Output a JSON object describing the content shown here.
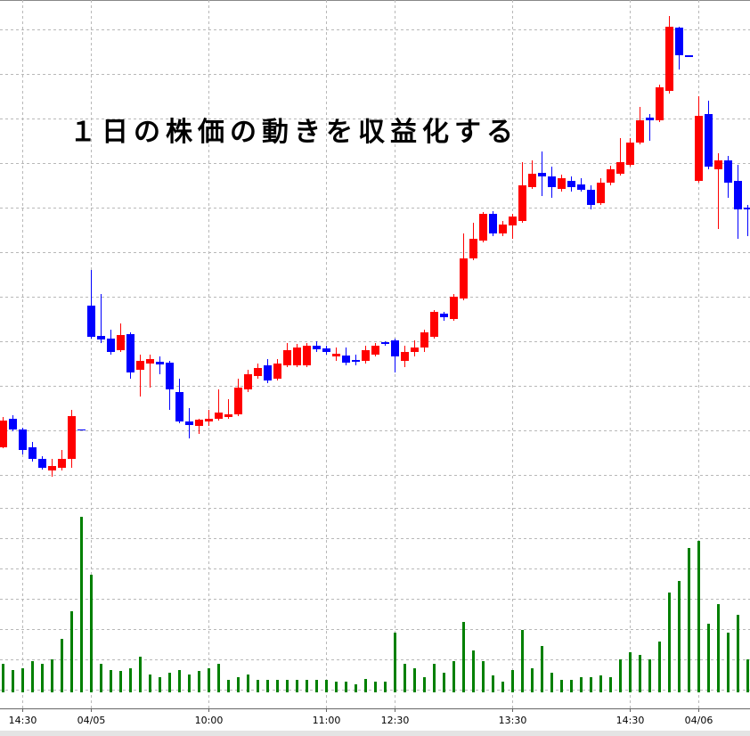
{
  "chart_data": {
    "type": "candlestick",
    "title": "１日の株価の動きを収益化する",
    "categories": [
      null,
      null,
      "14:30",
      null,
      null,
      null,
      null,
      null,
      null,
      "04/05",
      null,
      null,
      null,
      null,
      null,
      null,
      null,
      null,
      null,
      null,
      null,
      "10:00",
      null,
      null,
      null,
      null,
      null,
      null,
      null,
      null,
      null,
      null,
      null,
      "11:00",
      null,
      null,
      null,
      null,
      null,
      null,
      "12:30",
      null,
      null,
      null,
      null,
      null,
      null,
      null,
      null,
      null,
      null,
      null,
      "13:30",
      null,
      null,
      null,
      null,
      null,
      null,
      null,
      null,
      null,
      null,
      null,
      "14:30",
      null,
      null,
      null,
      null,
      null,
      null,
      "04/06",
      null,
      null,
      null,
      null,
      null
    ],
    "open": [
      98,
      130,
      118,
      98,
      85,
      72,
      75,
      85,
      118,
      257,
      223,
      220,
      207,
      225,
      185,
      192,
      194,
      193,
      160,
      127,
      122,
      127,
      130,
      132,
      135,
      163,
      178,
      190,
      175,
      190,
      190,
      190,
      212,
      209,
      200,
      201,
      196,
      195,
      202,
      216,
      218,
      195,
      205,
      210,
      222,
      248,
      242,
      265,
      310,
      330,
      360,
      338,
      347,
      352,
      390,
      406,
      402,
      388,
      397,
      393,
      387,
      372,
      395,
      405,
      415,
      440,
      468,
      465,
      498,
      569,
      538,
      397,
      472,
      410,
      420,
      397,
      367
    ],
    "high": [
      132,
      134,
      120,
      104,
      88,
      85,
      95,
      140,
      118,
      297,
      270,
      230,
      237,
      227,
      202,
      202,
      200,
      195,
      175,
      142,
      130,
      140,
      163,
      152,
      175,
      185,
      192,
      197,
      197,
      215,
      214,
      215,
      217,
      212,
      210,
      210,
      202,
      212,
      215,
      217,
      220,
      212,
      218,
      230,
      252,
      250,
      270,
      338,
      350,
      362,
      363,
      352,
      360,
      418,
      420,
      430,
      413,
      404,
      402,
      400,
      392,
      400,
      414,
      445,
      445,
      480,
      472,
      505,
      582,
      570,
      538,
      492,
      487,
      428,
      425,
      415,
      370
    ],
    "low": [
      97,
      116,
      90,
      82,
      73,
      65,
      72,
      75,
      118,
      220,
      215,
      202,
      205,
      175,
      155,
      165,
      180,
      140,
      125,
      108,
      113,
      122,
      128,
      130,
      133,
      160,
      175,
      170,
      173,
      188,
      188,
      188,
      205,
      202,
      195,
      190,
      190,
      192,
      200,
      212,
      182,
      188,
      200,
      205,
      220,
      240,
      240,
      263,
      308,
      328,
      335,
      335,
      332,
      350,
      388,
      380,
      378,
      385,
      385,
      385,
      365,
      370,
      392,
      403,
      413,
      438,
      442,
      463,
      495,
      522,
      536,
      395,
      410,
      343,
      378,
      332,
      335
    ],
    "close": [
      128,
      118,
      95,
      85,
      75,
      77,
      85,
      133,
      118,
      222,
      219,
      205,
      224,
      182,
      195,
      197,
      191,
      163,
      127,
      123,
      129,
      130,
      137,
      135,
      165,
      180,
      187,
      173,
      192,
      207,
      210,
      212,
      208,
      205,
      203,
      193,
      194,
      207,
      212,
      214,
      200,
      205,
      210,
      227,
      250,
      244,
      267,
      310,
      332,
      360,
      338,
      348,
      357,
      392,
      405,
      402,
      390,
      400,
      390,
      387,
      370,
      395,
      410,
      418,
      440,
      465,
      465,
      502,
      570,
      538,
      536,
      470,
      413,
      420,
      395,
      365,
      365
    ],
    "up_color": "#ff0000",
    "down_color": "#0000ff",
    "ylim": [
      40,
      600
    ],
    "ygrid": [
      67,
      117,
      167,
      217,
      267,
      317,
      367,
      417,
      467,
      517,
      567
    ],
    "volume": {
      "values": [
        32,
        25,
        27,
        35,
        32,
        37,
        60,
        91,
        197,
        132,
        32,
        25,
        24,
        27,
        40,
        20,
        17,
        22,
        25,
        20,
        24,
        27,
        32,
        14,
        17,
        20,
        14,
        14,
        14,
        14,
        14,
        14,
        14,
        14,
        12,
        12,
        9,
        15,
        12,
        12,
        67,
        32,
        27,
        17,
        32,
        22,
        35,
        79,
        47,
        35,
        19,
        12,
        25,
        70,
        27,
        52,
        22,
        14,
        14,
        17,
        17,
        19,
        17,
        37,
        45,
        42,
        37,
        57,
        112,
        125,
        162,
        170,
        77,
        99,
        67,
        87,
        37
      ],
      "color": "#008000",
      "ylim": [
        0,
        210
      ],
      "ygrid": [
        3,
        37,
        71,
        105,
        139,
        173,
        207
      ]
    }
  }
}
